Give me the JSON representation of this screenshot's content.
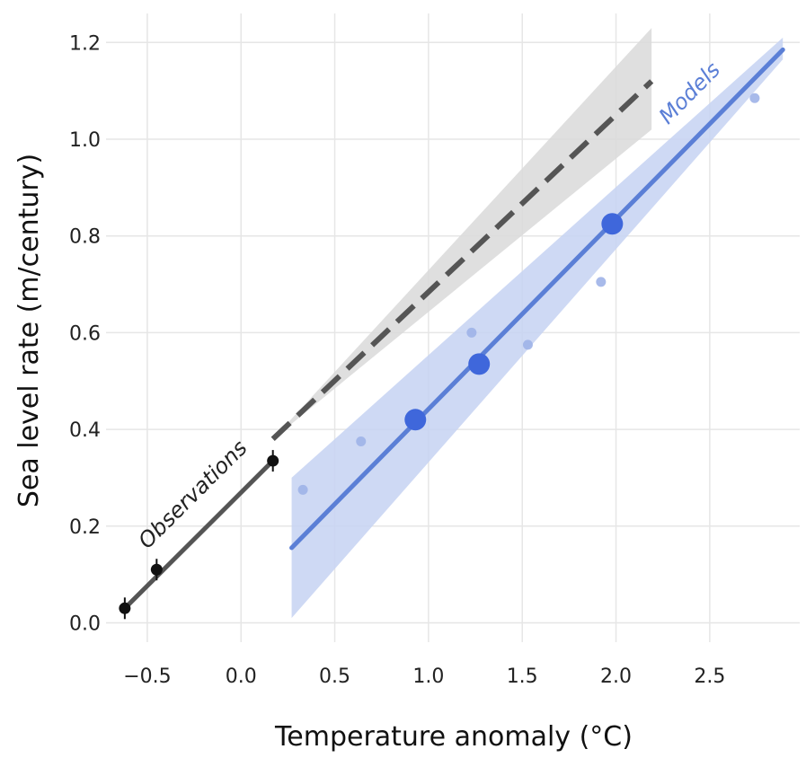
{
  "chart_data": {
    "type": "scatter",
    "title": "",
    "xlabel": "Temperature anomaly (°C)",
    "ylabel": "Sea level rate (m/century)",
    "xlim": [
      -0.72,
      2.98
    ],
    "ylim": [
      -0.04,
      1.26
    ],
    "xticks": [
      -0.5,
      0.0,
      0.5,
      1.0,
      1.5,
      2.0,
      2.5
    ],
    "xtick_labels": [
      "−0.5",
      "0.0",
      "0.5",
      "1.0",
      "1.5",
      "2.0",
      "2.5"
    ],
    "yticks": [
      0.0,
      0.2,
      0.4,
      0.6,
      0.8,
      1.0,
      1.2
    ],
    "ytick_labels": [
      "0.0",
      "0.2",
      "0.4",
      "0.6",
      "0.8",
      "1.0",
      "1.2"
    ],
    "grid": true,
    "colors": {
      "observations": "#555555",
      "observations_points": "#111111",
      "observations_band": "#d9d9d9",
      "models": "#5b7fd6",
      "models_points": "#3f67db",
      "models_small_points": "#9fb2e8",
      "models_band": "#c6d2f2"
    },
    "series": [
      {
        "name": "Observations",
        "points": [
          {
            "x": -0.62,
            "y": 0.03
          },
          {
            "x": -0.45,
            "y": 0.11
          },
          {
            "x": 0.17,
            "y": 0.335
          }
        ],
        "fit_solid": {
          "x": [
            -0.62,
            0.17
          ],
          "y": [
            0.03,
            0.335
          ]
        },
        "fit_dashed": {
          "x": [
            0.17,
            2.19
          ],
          "y": [
            0.38,
            1.12
          ]
        },
        "band": {
          "x": [
            0.17,
            2.19
          ],
          "lower": [
            0.38,
            1.02
          ],
          "upper": [
            0.38,
            1.23
          ]
        }
      },
      {
        "name": "Models",
        "points_large": [
          {
            "x": 0.93,
            "y": 0.42
          },
          {
            "x": 1.27,
            "y": 0.535
          },
          {
            "x": 1.98,
            "y": 0.825
          }
        ],
        "points_small": [
          {
            "x": 0.33,
            "y": 0.275
          },
          {
            "x": 0.64,
            "y": 0.375
          },
          {
            "x": 1.23,
            "y": 0.6
          },
          {
            "x": 1.53,
            "y": 0.575
          },
          {
            "x": 1.92,
            "y": 0.705
          },
          {
            "x": 2.74,
            "y": 1.085
          }
        ],
        "fit": {
          "x": [
            0.27,
            2.89
          ],
          "y": [
            0.155,
            1.185
          ]
        },
        "band": {
          "x": [
            0.27,
            2.89
          ],
          "lower": [
            0.01,
            1.165
          ],
          "upper": [
            0.3,
            1.21
          ]
        }
      }
    ],
    "annotations": [
      {
        "text": "Observations",
        "x": -0.23,
        "y": 0.255,
        "angle_data_slope": "observations"
      },
      {
        "text": "Models",
        "x": 2.42,
        "y": 1.085,
        "angle_data_slope": "models"
      }
    ]
  }
}
